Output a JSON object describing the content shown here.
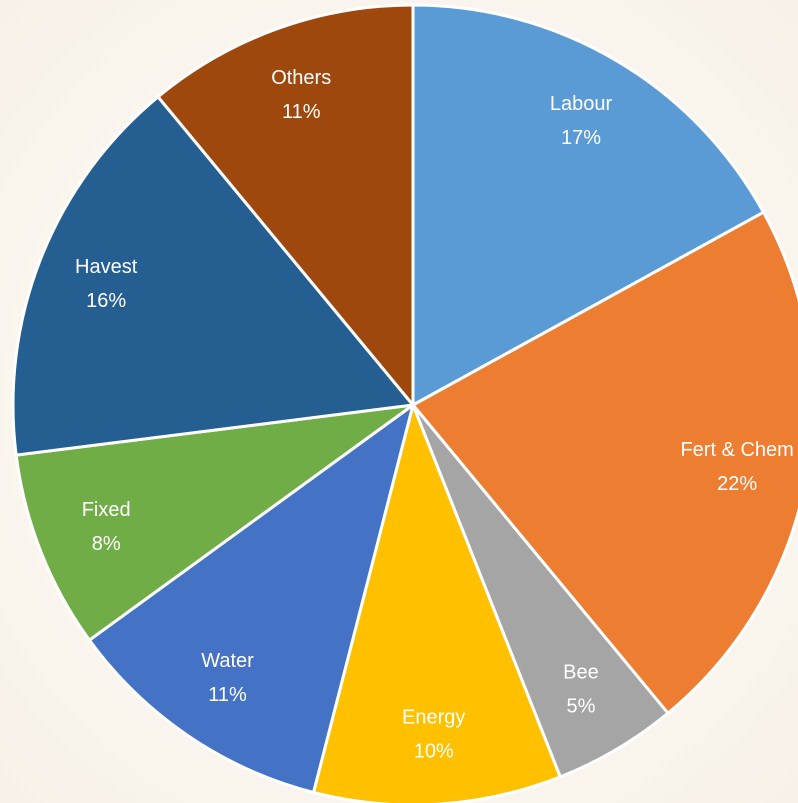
{
  "chart_data": {
    "type": "pie",
    "categories": [
      "Labour",
      "Fert & Chem",
      "Bee",
      "Energy",
      "Water",
      "Fixed",
      "Havest",
      "Others"
    ],
    "values": [
      17,
      22,
      5,
      10,
      11,
      8,
      16,
      11
    ],
    "value_labels": [
      "17%",
      "22%",
      "5%",
      "10%",
      "11%",
      "8%",
      "16%",
      "11%"
    ],
    "colors": [
      "#5b9bd5",
      "#ed7d31",
      "#a5a5a5",
      "#ffc000",
      "#4472c4",
      "#70ad47",
      "#255e91",
      "#9e480e"
    ]
  }
}
